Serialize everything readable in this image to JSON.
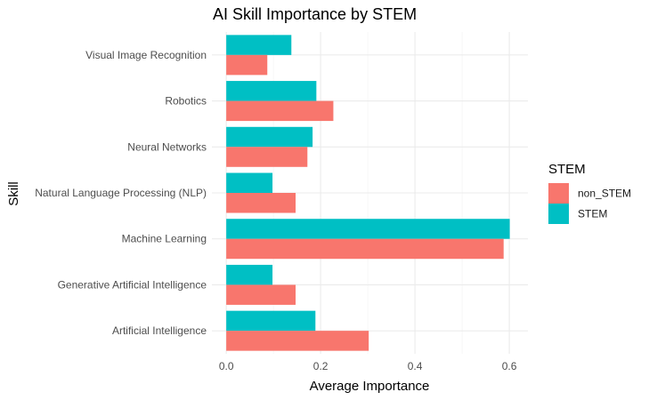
{
  "chart_data": {
    "type": "bar",
    "orientation": "horizontal",
    "title": "AI Skill Importance by STEM",
    "xlabel": "Average Importance",
    "ylabel": "Skill",
    "categories": [
      "Visual Image Recognition",
      "Robotics",
      "Neural Networks",
      "Natural Language Processing (NLP)",
      "Machine Learning",
      "Generative Artificial Intelligence",
      "Artificial Intelligence"
    ],
    "series": [
      {
        "name": "non_STEM",
        "color": "#F8766D",
        "values": [
          0.087,
          0.227,
          0.172,
          0.147,
          0.588,
          0.147,
          0.302
        ]
      },
      {
        "name": "STEM",
        "color": "#00BFC4",
        "values": [
          0.138,
          0.191,
          0.183,
          0.098,
          0.601,
          0.098,
          0.189
        ]
      }
    ],
    "xlim": [
      -0.0305,
      0.6395
    ],
    "x_ticks": [
      0.0,
      0.2,
      0.4,
      0.6
    ],
    "x_tick_labels": [
      "0.0",
      "0.2",
      "0.4",
      "0.6"
    ],
    "legend": {
      "title": "STEM",
      "placement": "right"
    },
    "grid": true
  }
}
